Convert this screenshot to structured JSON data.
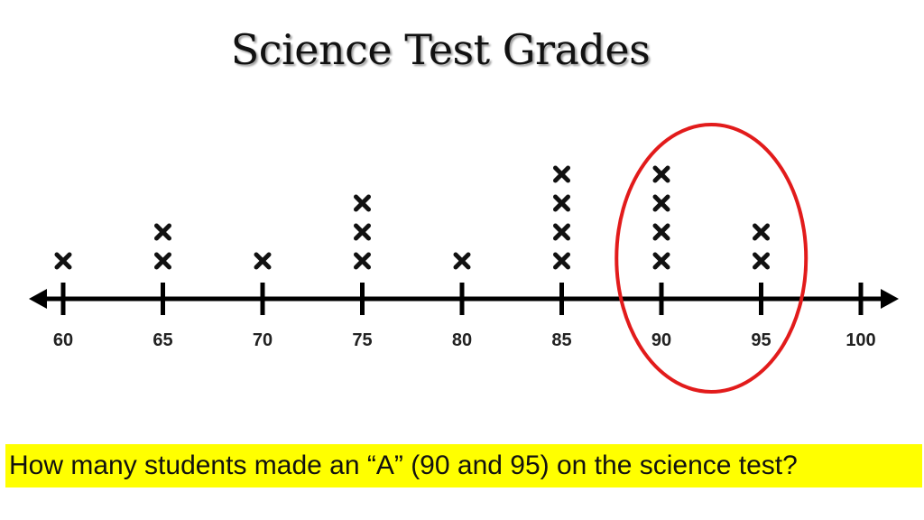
{
  "chart_data": {
    "type": "dot-plot",
    "title": "Science Test Grades",
    "ticks": [
      60,
      65,
      70,
      75,
      80,
      85,
      90,
      95,
      100
    ],
    "tick_labels": [
      "60",
      "65",
      "70",
      "75",
      "80",
      "85",
      "90",
      "95",
      "100"
    ],
    "points": [
      {
        "x": 60,
        "count": 1
      },
      {
        "x": 65,
        "count": 2
      },
      {
        "x": 70,
        "count": 1
      },
      {
        "x": 75,
        "count": 3
      },
      {
        "x": 80,
        "count": 1
      },
      {
        "x": 85,
        "count": 4
      },
      {
        "x": 90,
        "count": 4
      },
      {
        "x": 95,
        "count": 2
      }
    ],
    "marker": "x",
    "highlight": {
      "shape": "ellipse",
      "range": [
        90,
        95
      ],
      "color": "#e21b1b"
    }
  },
  "question": {
    "text": "How many students made an “A” (90 and 95) on the science test?",
    "background": "#ffff00"
  }
}
